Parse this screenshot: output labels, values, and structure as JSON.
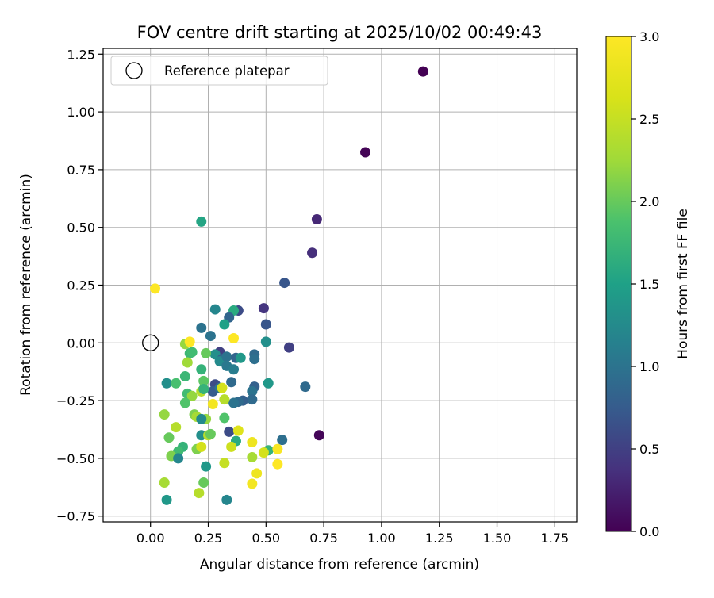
{
  "chart_data": {
    "type": "scatter",
    "title": "FOV centre drift starting at 2025/10/02 00:49:43",
    "xlabel": "Angular distance from reference (arcmin)",
    "ylabel": "Rotation from reference (arcmin)",
    "xlim": [
      -0.205,
      1.845
    ],
    "ylim": [
      -0.775,
      1.275
    ],
    "xticks": [
      0.0,
      0.25,
      0.5,
      0.75,
      1.0,
      1.25,
      1.5,
      1.75
    ],
    "xtick_labels": [
      "0.00",
      "0.25",
      "0.50",
      "0.75",
      "1.00",
      "1.25",
      "1.50",
      "1.75"
    ],
    "yticks": [
      -0.75,
      -0.5,
      -0.25,
      0.0,
      0.25,
      0.5,
      0.75,
      1.0,
      1.25
    ],
    "ytick_labels": [
      "−0.75",
      "−0.50",
      "−0.25",
      "0.00",
      "0.25",
      "0.50",
      "0.75",
      "1.00",
      "1.25"
    ],
    "grid": true,
    "legend": {
      "position": "upper-left",
      "entries": [
        "Reference platepar"
      ]
    },
    "reference_point": {
      "x": 0.0,
      "y": 0.0,
      "label": "Reference platepar"
    },
    "colorbar": {
      "label": "Hours from first FF file",
      "range": [
        0.0,
        3.0
      ],
      "ticks": [
        0.0,
        0.5,
        1.0,
        1.5,
        2.0,
        2.5,
        3.0
      ],
      "tick_labels": [
        "0.0",
        "0.5",
        "1.0",
        "1.5",
        "2.0",
        "2.5",
        "3.0"
      ],
      "colormap": "viridis"
    },
    "points": [
      {
        "x": 1.18,
        "y": 1.175,
        "c": 0.0
      },
      {
        "x": 0.93,
        "y": 0.825,
        "c": 0.02
      },
      {
        "x": 0.73,
        "y": -0.4,
        "c": 0.04
      },
      {
        "x": 0.72,
        "y": 0.535,
        "c": 0.3
      },
      {
        "x": 0.7,
        "y": 0.39,
        "c": 0.35
      },
      {
        "x": 0.6,
        "y": -0.02,
        "c": 0.5
      },
      {
        "x": 0.58,
        "y": 0.26,
        "c": 0.7
      },
      {
        "x": 0.67,
        "y": -0.19,
        "c": 0.9
      },
      {
        "x": 0.57,
        "y": -0.42,
        "c": 0.95
      },
      {
        "x": 0.49,
        "y": 0.15,
        "c": 0.4
      },
      {
        "x": 0.5,
        "y": 0.08,
        "c": 0.7
      },
      {
        "x": 0.5,
        "y": 0.005,
        "c": 1.3
      },
      {
        "x": 0.51,
        "y": -0.175,
        "c": 1.4
      },
      {
        "x": 0.51,
        "y": -0.465,
        "c": 1.7
      },
      {
        "x": 0.45,
        "y": -0.05,
        "c": 0.9
      },
      {
        "x": 0.45,
        "y": -0.07,
        "c": 0.95
      },
      {
        "x": 0.45,
        "y": -0.19,
        "c": 0.8
      },
      {
        "x": 0.44,
        "y": -0.21,
        "c": 1.0
      },
      {
        "x": 0.44,
        "y": -0.245,
        "c": 0.9
      },
      {
        "x": 0.4,
        "y": -0.25,
        "c": 0.8
      },
      {
        "x": 0.38,
        "y": -0.255,
        "c": 0.9
      },
      {
        "x": 0.36,
        "y": -0.26,
        "c": 1.0
      },
      {
        "x": 0.38,
        "y": 0.14,
        "c": 0.6
      },
      {
        "x": 0.36,
        "y": 0.14,
        "c": 1.6
      },
      {
        "x": 0.34,
        "y": 0.11,
        "c": 0.85
      },
      {
        "x": 0.32,
        "y": 0.08,
        "c": 1.5
      },
      {
        "x": 0.28,
        "y": 0.145,
        "c": 1.2
      },
      {
        "x": 0.22,
        "y": 0.525,
        "c": 1.55
      },
      {
        "x": 0.22,
        "y": 0.065,
        "c": 1.0
      },
      {
        "x": 0.26,
        "y": 0.03,
        "c": 1.0
      },
      {
        "x": 0.3,
        "y": -0.04,
        "c": 0.5
      },
      {
        "x": 0.28,
        "y": -0.05,
        "c": 1.3
      },
      {
        "x": 0.31,
        "y": -0.07,
        "c": 0.8
      },
      {
        "x": 0.3,
        "y": -0.08,
        "c": 1.25
      },
      {
        "x": 0.33,
        "y": -0.06,
        "c": 1.0
      },
      {
        "x": 0.33,
        "y": -0.1,
        "c": 1.05
      },
      {
        "x": 0.36,
        "y": -0.115,
        "c": 1.1
      },
      {
        "x": 0.37,
        "y": -0.065,
        "c": 0.85
      },
      {
        "x": 0.39,
        "y": -0.065,
        "c": 1.4
      },
      {
        "x": 0.35,
        "y": -0.17,
        "c": 0.9
      },
      {
        "x": 0.28,
        "y": -0.18,
        "c": 0.6
      },
      {
        "x": 0.27,
        "y": -0.21,
        "c": 0.75
      },
      {
        "x": 0.3,
        "y": -0.195,
        "c": 1.0
      },
      {
        "x": 0.34,
        "y": -0.385,
        "c": 0.6
      },
      {
        "x": 0.37,
        "y": -0.425,
        "c": 1.6
      },
      {
        "x": 0.33,
        "y": -0.68,
        "c": 1.2
      },
      {
        "x": 0.07,
        "y": -0.68,
        "c": 1.4
      },
      {
        "x": 0.07,
        "y": -0.175,
        "c": 1.3
      },
      {
        "x": 0.11,
        "y": -0.175,
        "c": 1.85
      },
      {
        "x": 0.15,
        "y": -0.145,
        "c": 1.75
      },
      {
        "x": 0.22,
        "y": -0.115,
        "c": 1.7
      },
      {
        "x": 0.23,
        "y": -0.165,
        "c": 1.95
      },
      {
        "x": 0.17,
        "y": -0.045,
        "c": 1.75
      },
      {
        "x": 0.18,
        "y": -0.04,
        "c": 1.8
      },
      {
        "x": 0.15,
        "y": -0.005,
        "c": 2.2
      },
      {
        "x": 0.24,
        "y": -0.045,
        "c": 2.0
      },
      {
        "x": 0.16,
        "y": -0.085,
        "c": 2.25
      },
      {
        "x": 0.17,
        "y": 0.005,
        "c": 3.0
      },
      {
        "x": 0.36,
        "y": 0.02,
        "c": 3.0
      },
      {
        "x": 0.02,
        "y": 0.235,
        "c": 3.0
      },
      {
        "x": 0.16,
        "y": -0.22,
        "c": 1.8
      },
      {
        "x": 0.18,
        "y": -0.23,
        "c": 2.2
      },
      {
        "x": 0.15,
        "y": -0.26,
        "c": 1.9
      },
      {
        "x": 0.22,
        "y": -0.21,
        "c": 2.4
      },
      {
        "x": 0.23,
        "y": -0.2,
        "c": 1.7
      },
      {
        "x": 0.27,
        "y": -0.265,
        "c": 2.9
      },
      {
        "x": 0.31,
        "y": -0.195,
        "c": 2.6
      },
      {
        "x": 0.32,
        "y": -0.245,
        "c": 2.4
      },
      {
        "x": 0.19,
        "y": -0.31,
        "c": 2.1
      },
      {
        "x": 0.2,
        "y": -0.32,
        "c": 2.3
      },
      {
        "x": 0.24,
        "y": -0.33,
        "c": 2.2
      },
      {
        "x": 0.32,
        "y": -0.325,
        "c": 1.9
      },
      {
        "x": 0.06,
        "y": -0.31,
        "c": 2.2
      },
      {
        "x": 0.11,
        "y": -0.365,
        "c": 2.4
      },
      {
        "x": 0.08,
        "y": -0.41,
        "c": 2.0
      },
      {
        "x": 0.22,
        "y": -0.4,
        "c": 1.3
      },
      {
        "x": 0.25,
        "y": -0.4,
        "c": 2.4
      },
      {
        "x": 0.26,
        "y": -0.395,
        "c": 2.0
      },
      {
        "x": 0.14,
        "y": -0.45,
        "c": 1.7
      },
      {
        "x": 0.12,
        "y": -0.47,
        "c": 1.8
      },
      {
        "x": 0.09,
        "y": -0.49,
        "c": 2.1
      },
      {
        "x": 0.12,
        "y": -0.5,
        "c": 1.2
      },
      {
        "x": 0.2,
        "y": -0.46,
        "c": 2.1
      },
      {
        "x": 0.22,
        "y": -0.45,
        "c": 2.6
      },
      {
        "x": 0.22,
        "y": -0.33,
        "c": 1.25
      },
      {
        "x": 0.24,
        "y": -0.535,
        "c": 1.4
      },
      {
        "x": 0.35,
        "y": -0.45,
        "c": 2.55
      },
      {
        "x": 0.38,
        "y": -0.38,
        "c": 2.7
      },
      {
        "x": 0.32,
        "y": -0.52,
        "c": 2.5
      },
      {
        "x": 0.44,
        "y": -0.43,
        "c": 2.85
      },
      {
        "x": 0.44,
        "y": -0.495,
        "c": 2.3
      },
      {
        "x": 0.49,
        "y": -0.475,
        "c": 2.6
      },
      {
        "x": 0.55,
        "y": -0.46,
        "c": 2.95
      },
      {
        "x": 0.55,
        "y": -0.525,
        "c": 3.0
      },
      {
        "x": 0.46,
        "y": -0.565,
        "c": 2.85
      },
      {
        "x": 0.44,
        "y": -0.61,
        "c": 2.9
      },
      {
        "x": 0.06,
        "y": -0.605,
        "c": 2.3
      },
      {
        "x": 0.23,
        "y": -0.605,
        "c": 2.0
      },
      {
        "x": 0.21,
        "y": -0.65,
        "c": 2.4
      }
    ]
  }
}
